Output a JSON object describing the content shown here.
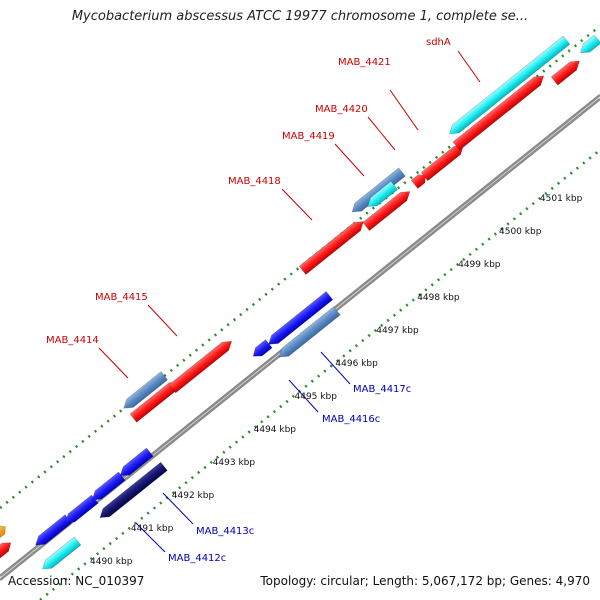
{
  "title": "Mycobacterium abscessus ATCC 19977 chromosome 1, complete se...",
  "footer": {
    "accession": "Accession: NC_010397",
    "summary": "Topology: circular; Length: 5,067,172 bp; Genes: 4,970"
  },
  "colors": {
    "forward_label": "#cc0000",
    "reverse_label": "#0000bb",
    "backbone": "#8c8c8c",
    "tick": "#2e8b2e"
  },
  "scale_ticks": [
    {
      "label": "4490 kbp",
      "kbp": 4490
    },
    {
      "label": "4491 kbp",
      "kbp": 4491
    },
    {
      "label": "4492 kbp",
      "kbp": 4492
    },
    {
      "label": "4493 kbp",
      "kbp": 4493
    },
    {
      "label": "4494 kbp",
      "kbp": 4494
    },
    {
      "label": "4495 kbp",
      "kbp": 4495
    },
    {
      "label": "4496 kbp",
      "kbp": 4496
    },
    {
      "label": "4497 kbp",
      "kbp": 4497
    },
    {
      "label": "4498 kbp",
      "kbp": 4498
    },
    {
      "label": "4499 kbp",
      "kbp": 4499
    },
    {
      "label": "4500 kbp",
      "kbp": 4500
    },
    {
      "label": "4501 kbp",
      "kbp": 4501
    }
  ],
  "gene_labels": [
    {
      "text": "sdhA",
      "strand": "forward"
    },
    {
      "text": "MAB_4421",
      "strand": "forward"
    },
    {
      "text": "MAB_4420",
      "strand": "forward"
    },
    {
      "text": "MAB_4419",
      "strand": "forward"
    },
    {
      "text": "MAB_4418",
      "strand": "forward"
    },
    {
      "text": "MAB_4415",
      "strand": "forward"
    },
    {
      "text": "MAB_4414",
      "strand": "forward"
    },
    {
      "text": "MAB_4417c",
      "strand": "reverse"
    },
    {
      "text": "MAB_4416c",
      "strand": "reverse"
    },
    {
      "text": "MAB_4413c",
      "strand": "reverse"
    },
    {
      "text": "MAB_4412c",
      "strand": "reverse"
    }
  ]
}
